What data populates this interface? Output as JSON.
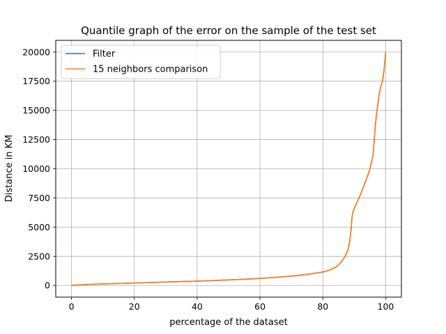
{
  "chart_data": {
    "type": "line",
    "title": "Quantile graph of the error on the sample of the test set",
    "xlabel": "percentage of the dataset",
    "ylabel": "Distance in KM",
    "xlim": [
      -5,
      105
    ],
    "ylim": [
      -1000,
      21000
    ],
    "xticks": [
      0,
      20,
      40,
      60,
      80,
      100
    ],
    "yticks": [
      0,
      2500,
      5000,
      7500,
      10000,
      12500,
      15000,
      17500,
      20000
    ],
    "grid": true,
    "legend_position": "top-left",
    "series": [
      {
        "name": "Filter",
        "color": "#1f77b4",
        "x": [
          0,
          2,
          5,
          10,
          15,
          20,
          25,
          30,
          35,
          40,
          45,
          50,
          55,
          60,
          65,
          70,
          75,
          80,
          82,
          84,
          85,
          86,
          87,
          88,
          88.5,
          89,
          89.2,
          89.5,
          90,
          91,
          92,
          93,
          94,
          95,
          96,
          96.5,
          97,
          97.5,
          98,
          98.5,
          99,
          99.5,
          100
        ],
        "y": [
          0,
          40,
          80,
          130,
          170,
          210,
          250,
          290,
          330,
          370,
          420,
          470,
          530,
          600,
          690,
          800,
          950,
          1150,
          1300,
          1550,
          1750,
          2050,
          2450,
          3050,
          3700,
          4800,
          5600,
          6200,
          6600,
          7200,
          7800,
          8500,
          9200,
          10000,
          11200,
          13000,
          14500,
          15500,
          16500,
          17100,
          17500,
          18500,
          20000
        ]
      },
      {
        "name": "15 neighbors comparison",
        "color": "#ff7f0e",
        "x": [
          0,
          2,
          5,
          10,
          15,
          20,
          25,
          30,
          35,
          40,
          45,
          50,
          55,
          60,
          65,
          70,
          75,
          80,
          82,
          84,
          85,
          86,
          87,
          88,
          88.5,
          89,
          89.2,
          89.5,
          90,
          91,
          92,
          93,
          94,
          95,
          96,
          96.5,
          97,
          97.5,
          98,
          98.5,
          99,
          99.5,
          100
        ],
        "y": [
          0,
          40,
          80,
          130,
          170,
          210,
          250,
          290,
          330,
          370,
          420,
          470,
          530,
          600,
          690,
          800,
          950,
          1150,
          1300,
          1550,
          1750,
          2050,
          2450,
          3050,
          3700,
          4800,
          5600,
          6200,
          6600,
          7200,
          7800,
          8500,
          9200,
          10000,
          11200,
          13000,
          14500,
          15500,
          16500,
          17100,
          17500,
          18500,
          20000
        ]
      }
    ]
  }
}
